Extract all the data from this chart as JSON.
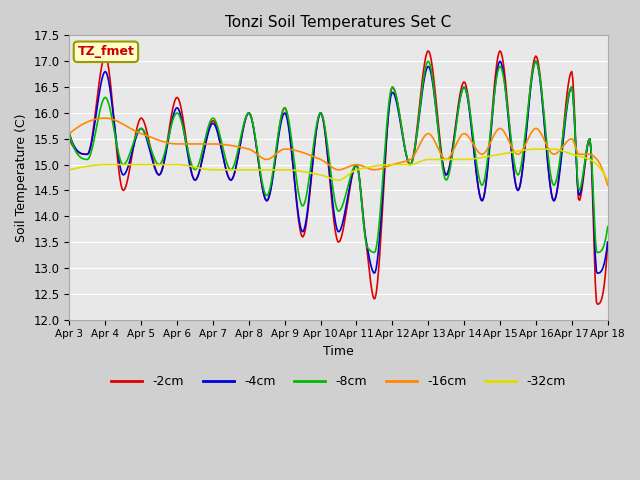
{
  "title": "Tonzi Soil Temperatures Set C",
  "xlabel": "Time",
  "ylabel": "Soil Temperature (C)",
  "ylim": [
    12.0,
    17.5
  ],
  "yticks": [
    12.0,
    12.5,
    13.0,
    13.5,
    14.0,
    14.5,
    15.0,
    15.5,
    16.0,
    16.5,
    17.0,
    17.5
  ],
  "xtick_labels": [
    "Apr 3",
    "Apr 4",
    "Apr 5",
    "Apr 6",
    "Apr 7",
    "Apr 8",
    "Apr 9",
    "Apr 10",
    "Apr 11",
    "Apr 12",
    "Apr 13",
    "Apr 14",
    "Apr 15",
    "Apr 16",
    "Apr 17",
    "Apr 18"
  ],
  "annotation_label": "TZ_fmet",
  "annotation_color": "#cc0000",
  "annotation_bg": "#ffffcc",
  "line_colors": [
    "#dd0000",
    "#0000dd",
    "#00bb00",
    "#ff8800",
    "#dddd00"
  ],
  "line_labels": [
    "-2cm",
    "-4cm",
    "-8cm",
    "-16cm",
    "-32cm"
  ],
  "line_width": 1.2,
  "bg_color": "#e8e8e8",
  "grid_color": "#ffffff",
  "figsize": [
    6.4,
    4.8
  ],
  "dpi": 100
}
